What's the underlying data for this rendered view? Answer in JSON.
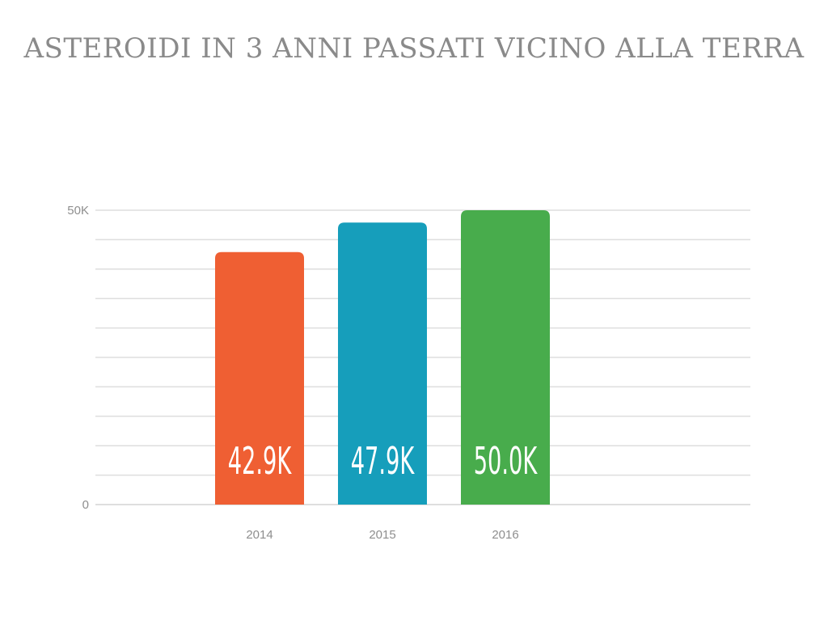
{
  "chart_data": {
    "type": "bar",
    "title": "ASTEROIDI IN 3 ANNI PASSATI VICINO ALLA TERRA",
    "categories": [
      "2014",
      "2015",
      "2016"
    ],
    "values": [
      42900,
      47900,
      50000
    ],
    "data_labels": [
      "42.9K",
      "47.9K",
      "50.0K"
    ],
    "colors": [
      "#ef5f33",
      "#169ebb",
      "#48ac4c"
    ],
    "y_ticks": [
      {
        "value": 0,
        "label": "0"
      },
      {
        "value": 50000,
        "label": "50K"
      }
    ],
    "ylim": [
      0,
      50000
    ],
    "grid": true,
    "legend": "none",
    "xlabel": "",
    "ylabel": ""
  }
}
